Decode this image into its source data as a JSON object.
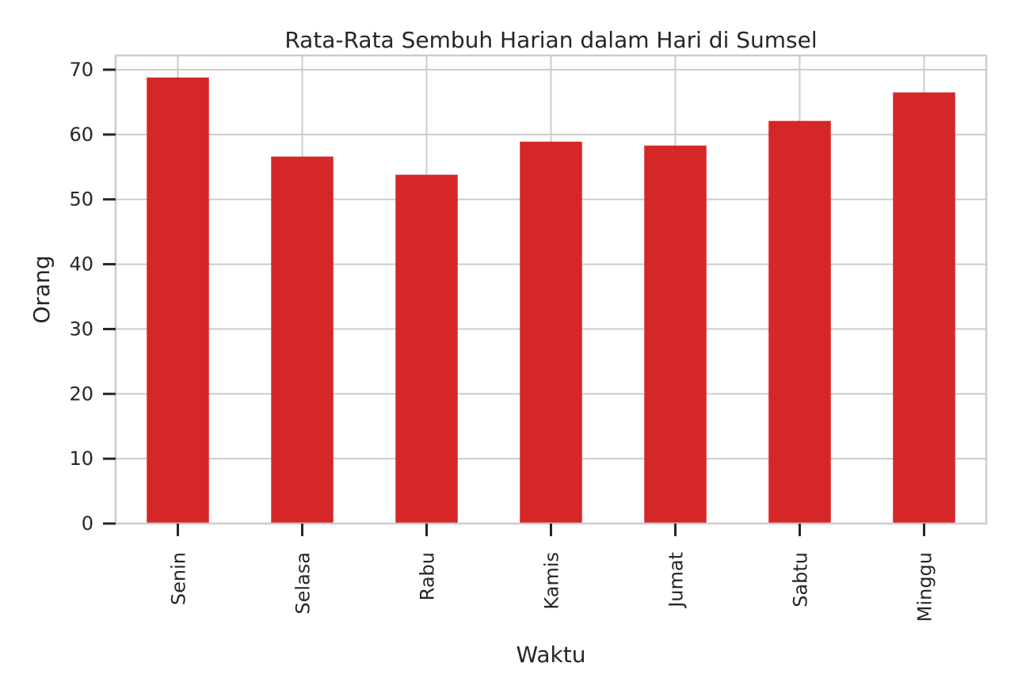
{
  "chart_data": {
    "type": "bar",
    "title": "Rata-Rata Sembuh Harian dalam Hari di Sumsel",
    "xlabel": "Waktu",
    "ylabel": "Orang",
    "categories": [
      "Senin",
      "Selasa",
      "Rabu",
      "Kamis",
      "Jumat",
      "Sabtu",
      "Minggu"
    ],
    "values": [
      68.8,
      56.6,
      53.8,
      58.9,
      58.3,
      62.1,
      66.5
    ],
    "yticks": [
      0,
      10,
      20,
      30,
      40,
      50,
      60,
      70
    ],
    "ylim": [
      0,
      72.2
    ],
    "grid": true,
    "legend": "none",
    "bar_color": "#d62728"
  }
}
